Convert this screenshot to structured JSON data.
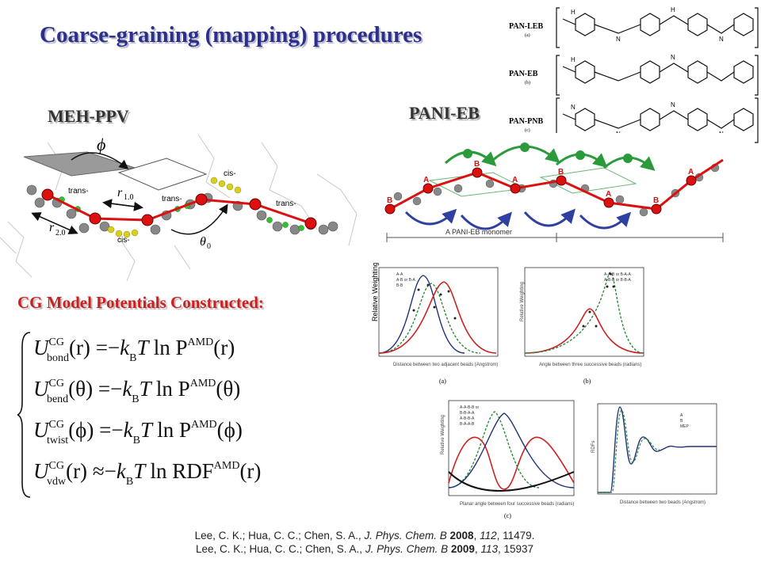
{
  "title": "Coarse-graining (mapping) procedures",
  "labels": {
    "meh_ppv": "MEH-PPV",
    "pani_eb": "PANI-EB",
    "cg_model": "CG Model Potentials Constructed:"
  },
  "meh_diagram": {
    "phi": "ϕ",
    "trans1": "trans-",
    "trans2": "trans-",
    "trans3": "trans-",
    "cis1": "cis-",
    "cis2": "cis-",
    "r1": "r",
    "r1_sub": "1.0",
    "r2": "r",
    "r2_sub": "2.0",
    "theta": "θ",
    "theta_sub": "0"
  },
  "pani_diagram": {
    "caption": "A PANI-EB monomer",
    "beads": [
      "A",
      "B",
      "A",
      "B",
      "A",
      "B",
      "A",
      "B"
    ]
  },
  "chem_structures": [
    {
      "name": "PAN-LEB",
      "tag": "(a)"
    },
    {
      "name": "PAN-EB",
      "tag": "(b)"
    },
    {
      "name": "PAN-PNB",
      "tag": "(c)"
    }
  ],
  "equations": [
    {
      "lhs_sub": "bond",
      "arg": "(r)",
      "op": "=",
      "func": "ln P",
      "func_sup": "AMD",
      "func_arg": "(r)"
    },
    {
      "lhs_sub": "bend",
      "arg": "(θ)",
      "op": "=",
      "func": "ln P",
      "func_sup": "AMD",
      "func_arg": "(θ)"
    },
    {
      "lhs_sub": "twist",
      "arg": "(ϕ)",
      "op": "=",
      "func": "ln P",
      "func_sup": "AMD",
      "func_arg": "(ϕ)"
    },
    {
      "lhs_sub": "vdw",
      "arg": "(r)",
      "op": "≈",
      "func": "ln RDF",
      "func_sup": "AMD",
      "func_arg": "(r)"
    }
  ],
  "eq_common": {
    "U": "U",
    "CG": "CG",
    "k": "k",
    "B": "B",
    "T": "T",
    "minus": "−"
  },
  "plots": {
    "a": {
      "tag": "(a)",
      "xlabel": "Distance between two adjacent beads (Angstrom)",
      "ylabel": "Relative Weighting",
      "legend": [
        "A-A",
        "A-B or B-A",
        "B-B"
      ]
    },
    "b": {
      "tag": "(b)",
      "xlabel": "Angle between three successive beads (radians)",
      "ylabel": "Relative Weighting",
      "legend": [
        "A-A-B or B-A-A",
        "A-B-B or B-B-A"
      ]
    },
    "c": {
      "tag": "(c)",
      "xlabel": "Planar angle between four successive beads (radians)",
      "ylabel": "Relative Weighting",
      "legend": [
        "A-A-B-B or",
        "B-B-A-A",
        "A-B-B-A",
        "B-A-A-B"
      ]
    },
    "d": {
      "xlabel": "Distance between two beads (Angstrom)",
      "ylabel": "RDFs",
      "legend": [
        "A",
        "B",
        "MEP"
      ]
    }
  },
  "references": [
    {
      "authors": "Lee, C. K.; Hua, C. C.; Chen, S. A., ",
      "journal": "J. Phys. Chem. B",
      "year": "2008",
      "volume": "112",
      "pages": "11479."
    },
    {
      "authors": "Lee, C. K.; Hua, C. C.; Chen, S. A., ",
      "journal": "J. Phys. Chem. B",
      "year": "2009",
      "volume": "113",
      "pages": "15937"
    }
  ]
}
